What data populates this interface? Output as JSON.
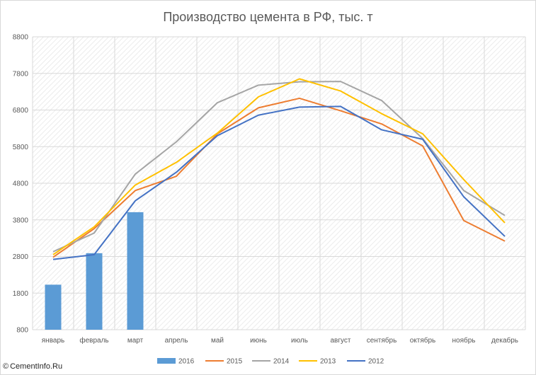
{
  "chart_data": {
    "type": "line",
    "title": "Производство цемента в РФ, тыс. т",
    "categories": [
      "январь",
      "февраль",
      "март",
      "апрель",
      "май",
      "июнь",
      "июль",
      "август",
      "сентябрь",
      "октябрь",
      "ноябрь",
      "декабрь"
    ],
    "ylim": [
      800,
      8800
    ],
    "yticks": [
      800,
      1800,
      2800,
      3800,
      4800,
      5800,
      6800,
      7800,
      8800
    ],
    "grid": true,
    "legend_position": "bottom",
    "series": [
      {
        "name": "2016",
        "type": "bar",
        "color": "#5b9bd5",
        "values": [
          2030,
          2890,
          4010,
          null,
          null,
          null,
          null,
          null,
          null,
          null,
          null,
          null
        ]
      },
      {
        "name": "2015",
        "type": "line",
        "color": "#ed7d31",
        "values": [
          2780,
          3560,
          4600,
          4990,
          6150,
          6860,
          7120,
          6780,
          6420,
          5820,
          3780,
          3220
        ]
      },
      {
        "name": "2014",
        "type": "line",
        "color": "#a5a5a5",
        "values": [
          2930,
          3440,
          5050,
          5930,
          7000,
          7480,
          7570,
          7580,
          7060,
          6020,
          4600,
          3920
        ]
      },
      {
        "name": "2013",
        "type": "line",
        "color": "#ffc000",
        "values": [
          2850,
          3610,
          4750,
          5370,
          6170,
          7160,
          7650,
          7320,
          6700,
          6150,
          4900,
          3720
        ]
      },
      {
        "name": "2012",
        "type": "line",
        "color": "#4472c4",
        "values": [
          2720,
          2850,
          4320,
          5100,
          6100,
          6660,
          6880,
          6900,
          6260,
          6000,
          4430,
          3350
        ]
      }
    ]
  },
  "credit": {
    "icon": "copyright-icon",
    "text": "CementInfo.Ru"
  }
}
